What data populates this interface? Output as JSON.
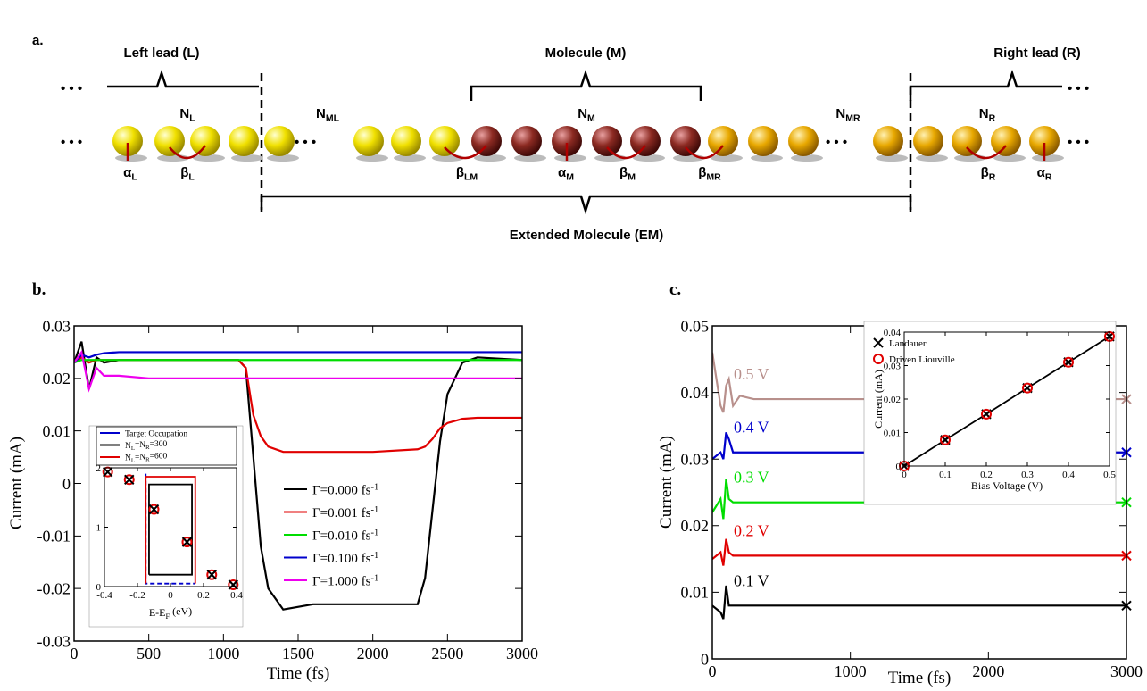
{
  "panel_a": {
    "label": "a.",
    "left_lead": "Left lead (L)",
    "molecule": "Molecule (M)",
    "right_lead": "Right lead (R)",
    "extended_molecule": "Extended Molecule (EM)",
    "sites": [
      "NL",
      "NML",
      "NM",
      "NMR",
      "NR"
    ],
    "couplings": [
      "αL",
      "βL",
      "βLM",
      "αM",
      "βM",
      "βMR",
      "βR",
      "αR"
    ]
  },
  "chart_data": [
    {
      "label": "b.",
      "type": "line",
      "x_label": "Time (fs)",
      "y_label": "Current (mA)",
      "x": [
        0,
        50,
        100,
        150,
        200,
        300,
        500,
        800,
        1100,
        1150,
        1200,
        1250,
        1300,
        1400,
        1600,
        2000,
        2300,
        2350,
        2400,
        2450,
        2500,
        2600,
        2700,
        3000
      ],
      "series": [
        {
          "name": "Γ=0.000 fs-1",
          "color": "#000000",
          "values": [
            0.023,
            0.027,
            0.018,
            0.024,
            0.023,
            0.0235,
            0.0235,
            0.0235,
            0.0235,
            0.022,
            0.005,
            -0.012,
            -0.02,
            -0.024,
            -0.023,
            -0.023,
            -0.023,
            -0.018,
            -0.005,
            0.008,
            0.017,
            0.023,
            0.024,
            0.0235
          ]
        },
        {
          "name": "Γ=0.001 fs-1",
          "color": "#e00000",
          "values": [
            0.023,
            0.024,
            0.023,
            0.0235,
            0.0235,
            0.0235,
            0.0235,
            0.0235,
            0.0235,
            0.022,
            0.013,
            0.009,
            0.007,
            0.006,
            0.006,
            0.006,
            0.0065,
            0.007,
            0.0085,
            0.0105,
            0.0115,
            0.0123,
            0.0125,
            0.0125
          ]
        },
        {
          "name": "Γ=0.010 fs-1",
          "color": "#00dd00",
          "values": [
            0.023,
            0.0235,
            0.0235,
            0.0235,
            0.0235,
            0.0235,
            0.0235,
            0.0235,
            0.0235,
            0.0235,
            0.0235,
            0.0235,
            0.0235,
            0.0235,
            0.0235,
            0.0235,
            0.0235,
            0.0235,
            0.0235,
            0.0235,
            0.0235,
            0.0235,
            0.0235,
            0.0235
          ]
        },
        {
          "name": "Γ=0.100 fs-1",
          "color": "#0000cc",
          "values": [
            0.023,
            0.0245,
            0.024,
            0.0245,
            0.0248,
            0.025,
            0.025,
            0.025,
            0.025,
            0.025,
            0.025,
            0.025,
            0.025,
            0.025,
            0.025,
            0.025,
            0.025,
            0.025,
            0.025,
            0.025,
            0.025,
            0.025,
            0.025,
            0.025
          ]
        },
        {
          "name": "Γ=1.000 fs-1",
          "color": "#ee00ee",
          "values": [
            0.023,
            0.025,
            0.018,
            0.022,
            0.0205,
            0.0205,
            0.02,
            0.02,
            0.02,
            0.02,
            0.02,
            0.02,
            0.02,
            0.02,
            0.02,
            0.02,
            0.02,
            0.02,
            0.02,
            0.02,
            0.02,
            0.02,
            0.02,
            0.02
          ]
        }
      ],
      "xlim": [
        0,
        3000
      ],
      "xticks": [
        0,
        500,
        1000,
        1500,
        2000,
        2500,
        3000
      ],
      "ylim": [
        -0.03,
        0.03
      ],
      "yticks": [
        -0.03,
        -0.02,
        -0.01,
        0,
        0.01,
        0.02,
        0.03
      ]
    },
    {
      "type": "line",
      "x_label": "E-EF (eV)",
      "series": [
        {
          "name": "Target Occupation",
          "color": "#0000cc",
          "dash": true,
          "x": [
            -0.15,
            -0.15,
            0.15
          ],
          "values": [
            1.9,
            0.05,
            0.05
          ]
        },
        {
          "name": "NL=NR=300",
          "color": "#000000",
          "x": [
            -0.13,
            -0.13,
            0.13,
            0.13,
            -0.13
          ],
          "values": [
            0.2,
            1.72,
            1.72,
            0.2,
            0.2
          ]
        },
        {
          "name": "NL=NR=600",
          "color": "#e00000",
          "x": [
            -0.15,
            -0.15,
            0.15,
            0.15
          ],
          "values": [
            0.05,
            1.85,
            1.85,
            0.05
          ]
        },
        {
          "color": "#e00000",
          "marker": "circle",
          "x": [
            -0.38,
            -0.25,
            -0.1,
            0.1,
            0.25,
            0.38
          ],
          "values": [
            1.93,
            1.8,
            1.3,
            0.75,
            0.2,
            0.03
          ]
        },
        {
          "color": "#000000",
          "marker": "x",
          "x": [
            -0.38,
            -0.25,
            -0.1,
            0.1,
            0.25,
            0.38
          ],
          "values": [
            1.93,
            1.8,
            1.3,
            0.75,
            0.2,
            0.03
          ]
        }
      ],
      "xlim": [
        -0.4,
        0.4
      ],
      "xticks": [
        -0.4,
        -0.2,
        0,
        0.2,
        0.4
      ],
      "ylim": [
        0,
        2
      ],
      "yticks": [
        0,
        1,
        2
      ]
    },
    {
      "label": "c.",
      "type": "line",
      "x_label": "Time (fs)",
      "y_label": "Current (mA)",
      "end_marker": true,
      "x": [
        0,
        60,
        80,
        100,
        120,
        150,
        200,
        300,
        3000
      ],
      "series": [
        {
          "name": "0.5 V",
          "color": "#b8908c",
          "values": [
            0.046,
            0.038,
            0.037,
            0.041,
            0.042,
            0.038,
            0.0395,
            0.039,
            0.039
          ]
        },
        {
          "name": "0.4 V",
          "color": "#0000cc",
          "values": [
            0.03,
            0.031,
            0.03,
            0.034,
            0.033,
            0.031,
            0.031,
            0.031,
            0.031
          ]
        },
        {
          "name": "0.3 V",
          "color": "#00dd00",
          "values": [
            0.022,
            0.024,
            0.021,
            0.027,
            0.024,
            0.0235,
            0.0235,
            0.0235,
            0.0235
          ]
        },
        {
          "name": "0.2 V",
          "color": "#e00000",
          "values": [
            0.015,
            0.016,
            0.014,
            0.018,
            0.016,
            0.0155,
            0.0155,
            0.0155,
            0.0155
          ]
        },
        {
          "name": "0.1 V",
          "color": "#000000",
          "values": [
            0.008,
            0.007,
            0.006,
            0.011,
            0.008,
            0.008,
            0.008,
            0.008,
            0.008
          ]
        }
      ],
      "xlim": [
        0,
        3000
      ],
      "xticks": [
        0,
        1000,
        2000,
        3000
      ],
      "ylim": [
        0,
        0.05
      ],
      "yticks": [
        0,
        0.01,
        0.02,
        0.03,
        0.04,
        0.05
      ]
    },
    {
      "type": "scatter",
      "x_label": "Bias Voltage (V)",
      "y_label": "Current (mA)",
      "x": [
        0,
        0.1,
        0.2,
        0.3,
        0.4,
        0.5
      ],
      "series": [
        {
          "name": "Landauer",
          "color": "#000000",
          "marker": "x",
          "line": true,
          "values": [
            0,
            0.0078,
            0.0155,
            0.0233,
            0.031,
            0.0387
          ]
        },
        {
          "name": "Driven Liouville",
          "color": "#e00000",
          "marker": "circle",
          "values": [
            0,
            0.0078,
            0.0155,
            0.0233,
            0.031,
            0.0387
          ]
        }
      ],
      "xlim": [
        0,
        0.5
      ],
      "xticks": [
        0,
        0.1,
        0.2,
        0.3,
        0.4,
        0.5
      ],
      "ylim": [
        0,
        0.04
      ],
      "yticks": [
        0,
        0.01,
        0.02,
        0.03,
        0.04
      ]
    }
  ]
}
